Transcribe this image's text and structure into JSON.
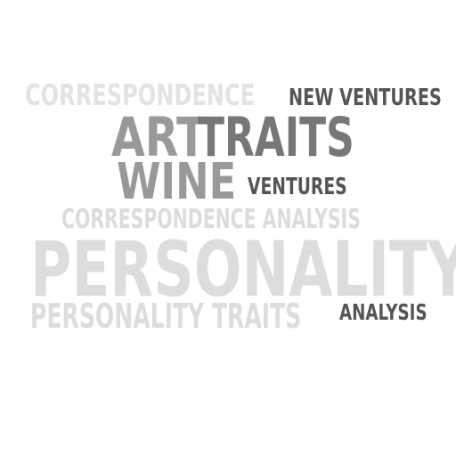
{
  "words": [
    {
      "text": "CORRESPONDENCE",
      "color": "#e3e3e3"
    },
    {
      "text": "NEW VENTURES",
      "color": "#555555"
    },
    {
      "text": "ART",
      "color": "#999999"
    },
    {
      "text": "TRAITS",
      "color": "#777777"
    },
    {
      "text": "WINE",
      "color": "#999999"
    },
    {
      "text": "VENTURES",
      "color": "#555555"
    },
    {
      "text": "CORRESPONDENCE ANALYSIS",
      "color": "#dcdcdc"
    },
    {
      "text": "PERSONALITY",
      "color": "#dddddd"
    },
    {
      "text": "PERSONALITY TRAITS",
      "color": "#dddddd"
    },
    {
      "text": "ANALYSIS",
      "color": "#555555"
    }
  ]
}
